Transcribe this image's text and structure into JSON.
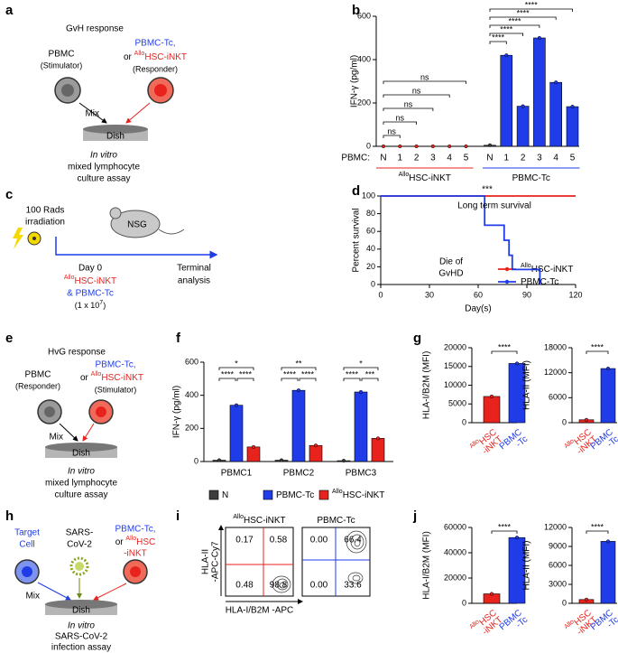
{
  "panel_labels": [
    "a",
    "b",
    "c",
    "d",
    "e",
    "f",
    "g",
    "h",
    "i",
    "j"
  ],
  "diagrams": {
    "a": {
      "title": "GvH response",
      "left": "PBMC",
      "left_role": "(Stimulator)",
      "right1": "PBMC-Tc,",
      "right2_or": "or ",
      "right2_sup": "Allo",
      "right2": "HSC-iNKT",
      "right_role": "(Responder)",
      "mix": "Mix",
      "dish": "Dish",
      "assay1": "In vitro",
      "assay2": "mixed lymphocyte",
      "assay3": "culture assay"
    },
    "c": {
      "dose1": "100 Rads",
      "dose2": "irradiation",
      "mouse": "NSG",
      "day": "Day 0",
      "cells1_sup": "Allo",
      "cells1": "HSC-iNKT",
      "cells2": "& PBMC-Tc",
      "count": "(1 x 10",
      "count_exp": "7",
      "count_end": ")",
      "end1": "Terminal",
      "end2": "analysis"
    },
    "e": {
      "title": "HvG response",
      "left": "PBMC",
      "left_role": "(Responder)",
      "right1": "PBMC-Tc,",
      "right2_or": "or ",
      "right2_sup": "Allo",
      "right2": "HSC-iNKT",
      "right_role": "(Stimulator)",
      "mix": "Mix",
      "dish": "Dish",
      "assay1": "In vitro",
      "assay2": "mixed lymphocyte",
      "assay3": "culture assay"
    },
    "h": {
      "target1": "Target",
      "target2": "Cell",
      "virus1": "SARS-",
      "virus2": "CoV-2",
      "right1": "PBMC-Tc,",
      "right2_or": "or ",
      "right2_sup": "Allo",
      "right2": "HSC",
      "right3": "-iNKT",
      "mix": "Mix",
      "dish": "Dish",
      "assay1": "In vitro",
      "assay2": "SARS-CoV-2",
      "assay3": "infection assay"
    }
  },
  "chart_data": [
    {
      "type": "bar",
      "y_label": "IFN-γ (pg/ml)",
      "row_label": "PBMC:",
      "categories": [
        "N",
        "1",
        "2",
        "3",
        "4",
        "5",
        "N",
        "1",
        "2",
        "3",
        "4",
        "5"
      ],
      "series": [
        {
          "color": "#e8231e",
          "values": [
            0,
            0,
            0,
            0,
            0,
            0,
            null,
            null,
            null,
            null,
            null,
            null
          ]
        },
        {
          "color": "#3d3d3d",
          "values": [
            null,
            null,
            null,
            null,
            null,
            null,
            5,
            null,
            null,
            null,
            null,
            null
          ]
        },
        {
          "color": "#1f3ce8",
          "values": [
            null,
            null,
            null,
            null,
            null,
            null,
            null,
            420,
            185,
            500,
            295,
            183
          ]
        }
      ],
      "groups": [
        {
          "sup": "Allo",
          "text": "HSC-iNKT",
          "color": "#e8231e"
        },
        {
          "text": "PBMC-Tc",
          "color": "#1f3ce8"
        }
      ],
      "brackets": [
        "ns",
        "ns",
        "ns",
        "ns",
        "ns",
        "****",
        "****",
        "****",
        "****",
        "****"
      ],
      "ylim": [
        0,
        600
      ],
      "yticks": [
        0,
        200,
        400,
        600
      ]
    },
    {
      "type": "line",
      "y_label": "Percent survival",
      "x_label": "Day(s)",
      "series": [
        {
          "name_sup": "Allo",
          "name": "HSC-iNKT",
          "color": "#e8231e",
          "x": [
            0,
            120
          ],
          "values": [
            100,
            100
          ]
        },
        {
          "name": "PBMC-Tc",
          "color": "#1f3ce8",
          "x": [
            0,
            64,
            64,
            76,
            76,
            79,
            79,
            81,
            81,
            98,
            98
          ],
          "values": [
            100,
            100,
            67,
            67,
            50,
            50,
            33,
            33,
            17,
            17,
            0
          ]
        }
      ],
      "annotations": [
        {
          "text": "***",
          "color": "#e8231e"
        },
        {
          "text": "Long term survival",
          "color": "#e8231e"
        },
        {
          "text": "Die of",
          "color": "#1f3ce8"
        },
        {
          "text": "GvHD",
          "color": "#1f3ce8"
        }
      ],
      "xlim": [
        0,
        120
      ],
      "xticks": [
        0,
        30,
        60,
        90,
        120
      ],
      "ylim": [
        0,
        100
      ],
      "yticks": [
        0,
        20,
        40,
        60,
        80,
        100
      ]
    },
    {
      "type": "bar",
      "y_label": "IFN-γ (pg/ml)",
      "categories": [
        "PBMC1",
        "PBMC2",
        "PBMC3"
      ],
      "series": [
        {
          "name": "N",
          "color": "#3d3d3d",
          "values": [
            8,
            8,
            5
          ]
        },
        {
          "name": "PBMC-Tc",
          "color": "#1f3ce8",
          "values": [
            340,
            430,
            420
          ]
        },
        {
          "name_sup": "Allo",
          "name": "HSC-iNKT",
          "color": "#e8231e",
          "values": [
            88,
            97,
            140
          ]
        }
      ],
      "brackets": [
        [
          "*",
          "****",
          "****"
        ],
        [
          "**",
          "****",
          "****"
        ],
        [
          "*",
          "****",
          "***"
        ]
      ],
      "ylim": [
        0,
        600
      ],
      "yticks": [
        0,
        200,
        400,
        600
      ]
    },
    {
      "type": "bar",
      "y_label": "HLA-I/B2M (MFI)",
      "categories": [
        {
          "sup": "Allo",
          "lines": [
            "HSC",
            "-iNKT"
          ]
        },
        {
          "lines": [
            "PBMC",
            "-Tc"
          ]
        }
      ],
      "values": [
        7000,
        15800
      ],
      "colors": [
        "#e8231e",
        "#1f3ce8"
      ],
      "significance": "****",
      "ylim": [
        0,
        20000
      ],
      "yticks": [
        0,
        5000,
        10000,
        15000,
        20000
      ]
    },
    {
      "type": "bar",
      "y_label": "HLA-II (MFI)",
      "categories": [
        {
          "sup": "Allo",
          "lines": [
            "HSC",
            "-iNKT"
          ]
        },
        {
          "lines": [
            "PBMC",
            "-Tc"
          ]
        }
      ],
      "values": [
        700,
        13000
      ],
      "colors": [
        "#e8231e",
        "#1f3ce8"
      ],
      "significance": "****",
      "ylim": [
        0,
        18000
      ],
      "yticks": [
        0,
        6000,
        12000,
        18000
      ]
    },
    {
      "type": "bar",
      "y_label": "HLA-I/B2M (MFI)",
      "categories": [
        {
          "sup": "Allo",
          "lines": [
            "HSC",
            "-iNKT"
          ]
        },
        {
          "lines": [
            "PBMC",
            "-Tc"
          ]
        }
      ],
      "values": [
        7500,
        52000
      ],
      "colors": [
        "#e8231e",
        "#1f3ce8"
      ],
      "significance": "****",
      "ylim": [
        0,
        60000
      ],
      "yticks": [
        0,
        20000,
        40000,
        60000
      ]
    },
    {
      "type": "bar",
      "y_label": "HLA-II (MFI)",
      "categories": [
        {
          "sup": "Allo",
          "lines": [
            "HSC",
            "-iNKT"
          ]
        },
        {
          "lines": [
            "PBMC",
            "-Tc"
          ]
        }
      ],
      "values": [
        600,
        9800
      ],
      "colors": [
        "#e8231e",
        "#1f3ce8"
      ],
      "significance": "****",
      "ylim": [
        0,
        12000
      ],
      "yticks": [
        0,
        3000,
        6000,
        9000,
        12000
      ]
    },
    {
      "type": "quadrant",
      "y_label": [
        "HLA-II",
        "-APC-Cy7"
      ],
      "x_label": "HLA-I/B2M -APC",
      "panels": [
        {
          "title_sup": "Allo",
          "title": "HSC-iNKT",
          "color": "#e8231e",
          "values": [
            0.17,
            0.58,
            0.48,
            98.8
          ]
        },
        {
          "title": "PBMC-Tc",
          "color": "#1f3ce8",
          "values": [
            0,
            66.4,
            0,
            33.6
          ],
          "value_labels": [
            "0.00",
            "66.4",
            "0.00",
            "33.6"
          ]
        }
      ]
    }
  ]
}
